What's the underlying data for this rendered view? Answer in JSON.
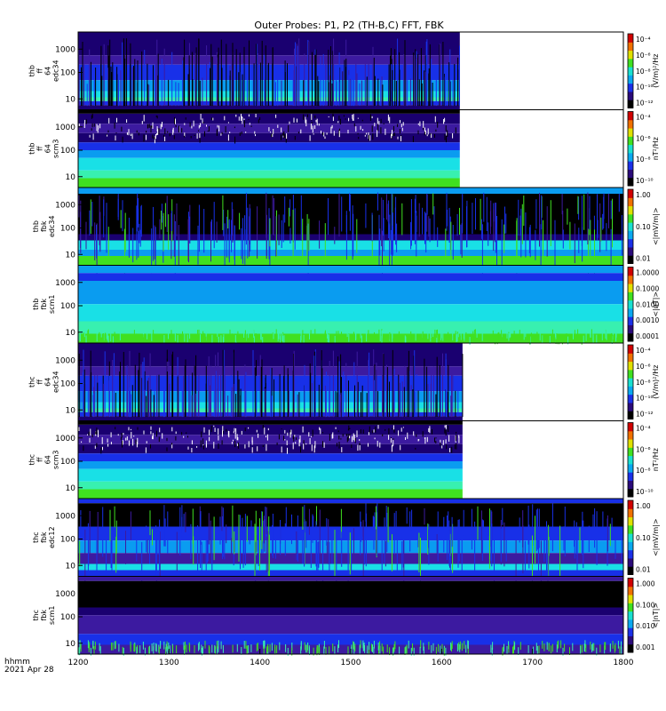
{
  "title": "Outer Probes: P1, P2 (TH-B,C) FFT, FBK",
  "footer": {
    "line1": "hhmm",
    "line2": "2021 Apr 28"
  },
  "x_ticks": [
    "1200",
    "1300",
    "1400",
    "1500",
    "1600",
    "1700",
    "1800"
  ],
  "panel_colors": {
    "black": "#000000",
    "white": "#ffffff",
    "navy": "#1a0070",
    "purple": "#3c1aa0",
    "blue": "#1830e8",
    "sky": "#0a9cf0",
    "cyan": "#19e0e6",
    "aqua": "#38f0b0",
    "green": "#40e020",
    "yellow": "#f0e000",
    "red": "#e00000"
  },
  "chart_data": {
    "type": "heatmap",
    "title": "Outer Probes: P1, P2 (TH-B,C) FFT, FBK",
    "x": {
      "ticks": [
        1200,
        1300,
        1400,
        1500,
        1600,
        1700,
        1800
      ],
      "range": [
        1200,
        1800
      ],
      "label": "hhmm 2021 Apr 28"
    },
    "panels": [
      {
        "id": "tfb-ffp-edc34",
        "ylabel": [
          "thb",
          "ff",
          "64",
          "edc34"
        ],
        "yticks": [
          "1000",
          "100",
          "10"
        ],
        "data_end_hhmm": 1620,
        "cbar_ticks": [
          "10⁻⁴",
          "10⁻⁶",
          "10⁻⁸",
          "10⁻¹⁰",
          "10⁻¹²"
        ],
        "cbar_label": "(V/m)²/Hz",
        "style": "ffp"
      },
      {
        "id": "tfb-ffw-scm3",
        "ylabel": [
          "thb",
          "ff",
          "64",
          "scm3"
        ],
        "yticks": [
          "1000",
          "100",
          "10"
        ],
        "data_end_hhmm": 1620,
        "cbar_ticks": [
          "10⁻⁴",
          "10⁻⁶",
          "10⁻⁸",
          "10⁻¹⁰"
        ],
        "cbar_label": "nT²/Hz",
        "style": "ffw"
      },
      {
        "id": "tfb-fbk-edc34",
        "ylabel": [
          "thb",
          "fbk",
          "edc34"
        ],
        "yticks": [
          "1000",
          "100",
          "10"
        ],
        "data_end_hhmm": 1800,
        "cbar_ticks": [
          "1.00",
          "0.10",
          "0.01"
        ],
        "cbar_label": "<|mV/m|>",
        "style": "fbk_e"
      },
      {
        "id": "tfb-fbk-scm1",
        "ylabel": [
          "thb",
          "fbk",
          "scm1"
        ],
        "yticks": [
          "1000",
          "100",
          "10"
        ],
        "data_end_hhmm": 1800,
        "cbar_ticks": [
          "1.0000",
          "0.1000",
          "0.0100",
          "0.0010",
          "0.0001"
        ],
        "cbar_label": "<|nT|>",
        "style": "fbk_b"
      },
      {
        "id": "tfc-ffp-edc34",
        "ylabel": [
          "thc",
          "ff",
          "64",
          "edc34"
        ],
        "yticks": [
          "1000",
          "100",
          "10"
        ],
        "data_end_hhmm": 1623,
        "cbar_ticks": [
          "10⁻⁴",
          "10⁻⁶",
          "10⁻⁸",
          "10⁻¹⁰",
          "10⁻¹²"
        ],
        "cbar_label": "(V/m)²/Hz",
        "style": "ffp"
      },
      {
        "id": "tfc-ffw-scm3",
        "ylabel": [
          "thc",
          "ff",
          "64",
          "scm3"
        ],
        "yticks": [
          "1000",
          "100",
          "10"
        ],
        "data_end_hhmm": 1623,
        "cbar_ticks": [
          "10⁻⁴",
          "10⁻⁶",
          "10⁻⁸",
          "10⁻¹⁰"
        ],
        "cbar_label": "nT²/Hz",
        "style": "ffw"
      },
      {
        "id": "tfc-fbk-edc12",
        "ylabel": [
          "thc",
          "fbk",
          "edc12"
        ],
        "yticks": [
          "1000",
          "100",
          "10"
        ],
        "data_end_hhmm": 1800,
        "cbar_ticks": [
          "1.00",
          "0.10",
          "0.01"
        ],
        "cbar_label": "<|mV/m|>",
        "style": "fbk_e2"
      },
      {
        "id": "tfc-fbk-scm1",
        "ylabel": [
          "thc",
          "fbk",
          "scm1"
        ],
        "yticks": [
          "1000",
          "100",
          "10"
        ],
        "data_end_hhmm": 1800,
        "cbar_ticks": [
          "1.000",
          "0.100",
          "0.010",
          "0.001"
        ],
        "cbar_label": "<|nT|>",
        "style": "fbk_b2"
      }
    ]
  }
}
